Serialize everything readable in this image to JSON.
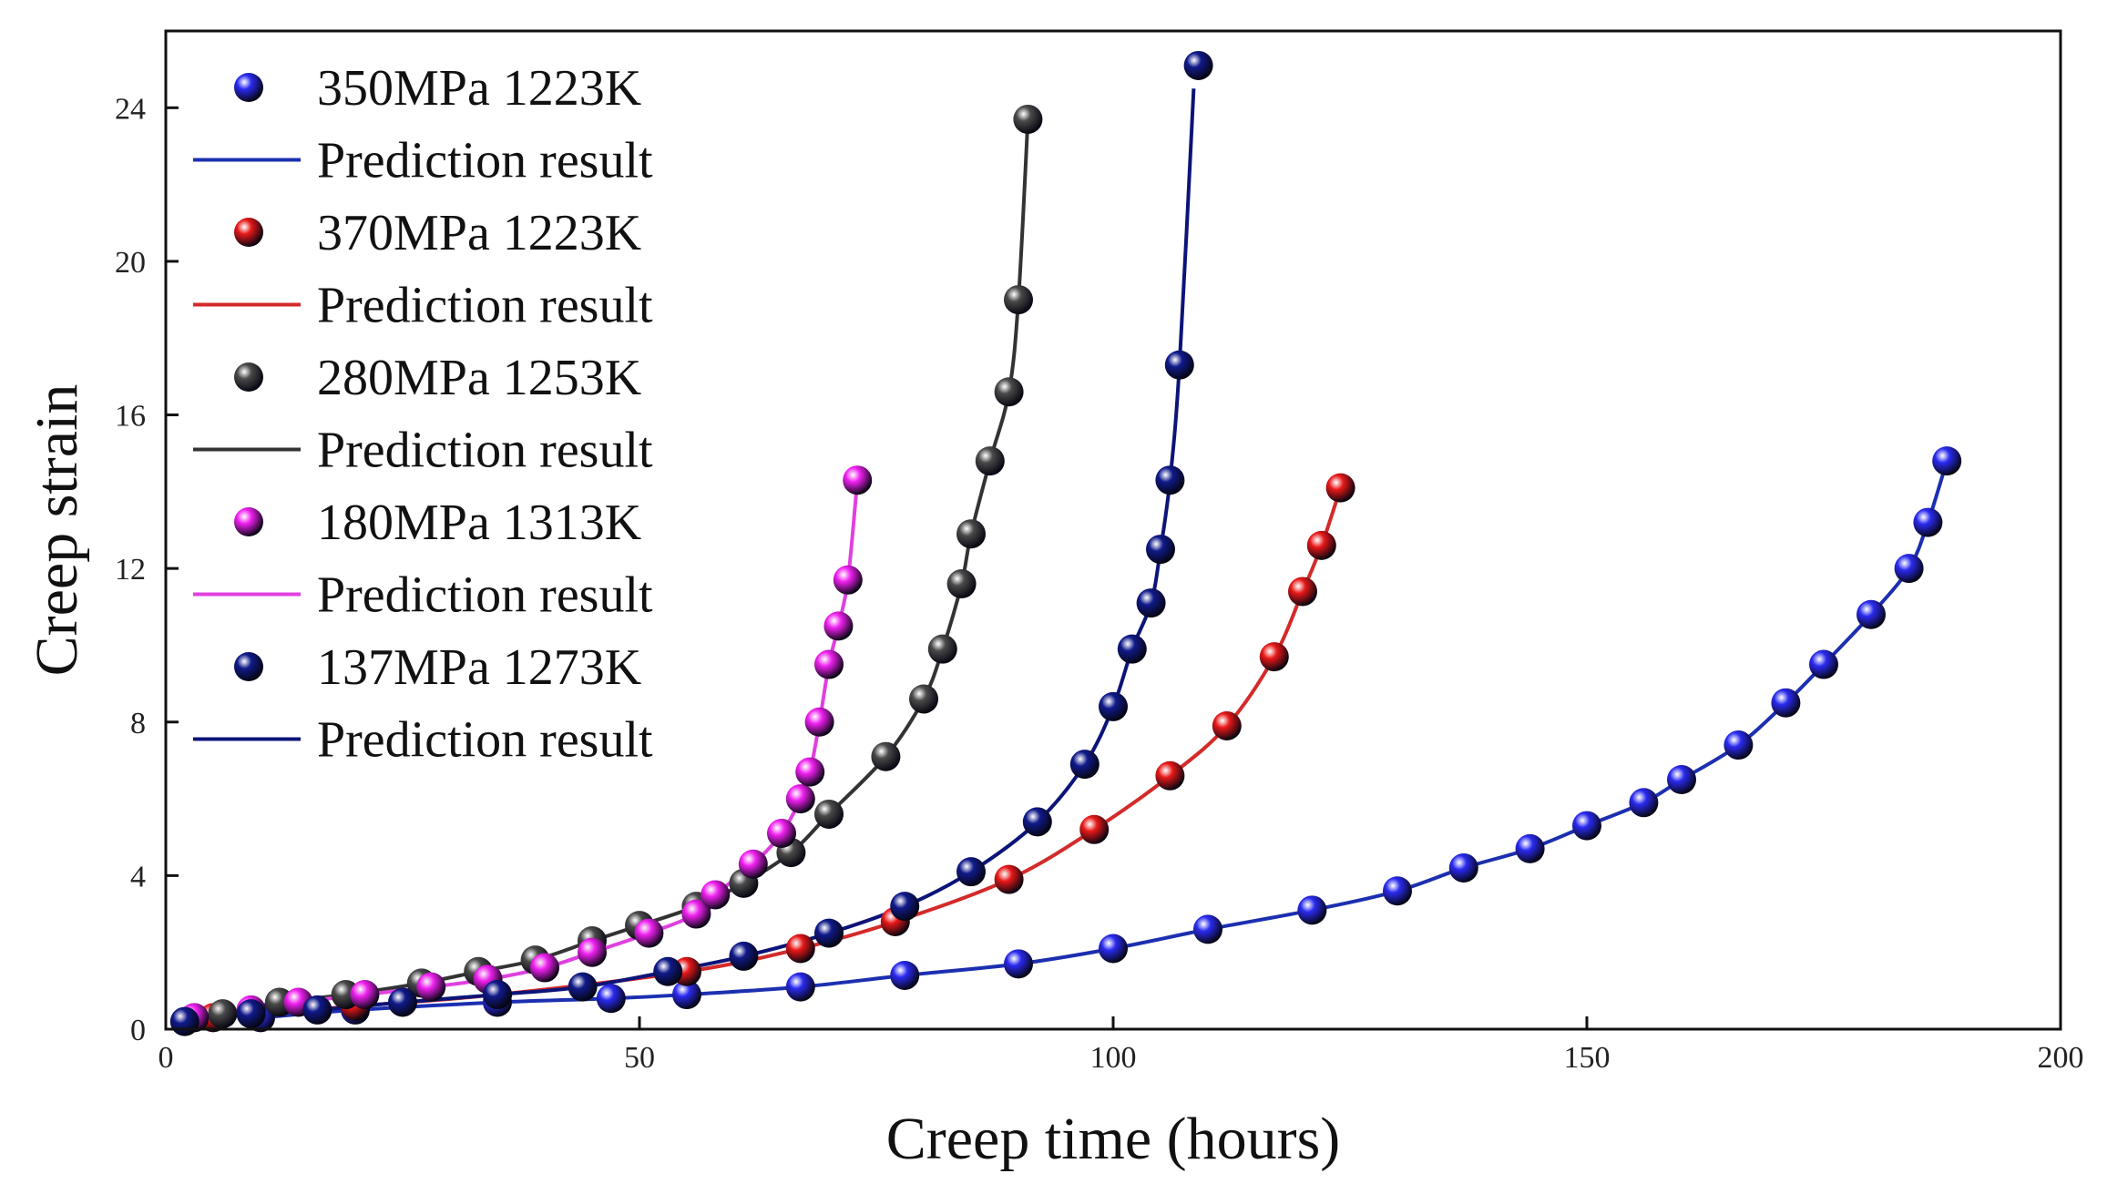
{
  "chart_data": {
    "type": "scatter",
    "title": "",
    "xlabel": "Creep time (hours)",
    "ylabel": "Creep strain",
    "xlim": [
      0,
      200
    ],
    "ylim": [
      0,
      26
    ],
    "xticks": [
      0,
      50,
      100,
      150,
      200
    ],
    "yticks": [
      0,
      4,
      8,
      12,
      16,
      20,
      24
    ],
    "grid": false,
    "legend_position": "top-left",
    "series": [
      {
        "name": "350MPa 1223K",
        "fit_name": "Prediction result",
        "marker_color": "#2a2af0",
        "line_color": "#1c2fb0",
        "points": [
          [
            10,
            0.3
          ],
          [
            20,
            0.5
          ],
          [
            35,
            0.7
          ],
          [
            47,
            0.8
          ],
          [
            55,
            0.9
          ],
          [
            67,
            1.1
          ],
          [
            78,
            1.4
          ],
          [
            90,
            1.7
          ],
          [
            100,
            2.1
          ],
          [
            110,
            2.6
          ],
          [
            121,
            3.1
          ],
          [
            130,
            3.6
          ],
          [
            137,
            4.2
          ],
          [
            144,
            4.7
          ],
          [
            150,
            5.3
          ],
          [
            156,
            5.9
          ],
          [
            160,
            6.5
          ],
          [
            166,
            7.4
          ],
          [
            171,
            8.5
          ],
          [
            175,
            9.5
          ],
          [
            180,
            10.8
          ],
          [
            184,
            12.0
          ],
          [
            186,
            13.2
          ],
          [
            188,
            14.8
          ]
        ]
      },
      {
        "name": "370MPa 1223K",
        "fit_name": "Prediction result",
        "marker_color": "#e81818",
        "line_color": "#d42a2a",
        "points": [
          [
            5,
            0.3
          ],
          [
            20,
            0.6
          ],
          [
            35,
            0.9
          ],
          [
            55,
            1.5
          ],
          [
            67,
            2.1
          ],
          [
            77,
            2.8
          ],
          [
            89,
            3.9
          ],
          [
            98,
            5.2
          ],
          [
            106,
            6.6
          ],
          [
            112,
            7.9
          ],
          [
            117,
            9.7
          ],
          [
            120,
            11.4
          ],
          [
            122,
            12.6
          ],
          [
            124,
            14.1
          ]
        ]
      },
      {
        "name": "280MPa 1253K",
        "fit_name": "Prediction result",
        "marker_color": "#4a4a4a",
        "line_color": "#333333",
        "points": [
          [
            3,
            0.3
          ],
          [
            6,
            0.4
          ],
          [
            12,
            0.7
          ],
          [
            19,
            0.9
          ],
          [
            27,
            1.2
          ],
          [
            33,
            1.5
          ],
          [
            39,
            1.8
          ],
          [
            45,
            2.3
          ],
          [
            50,
            2.7
          ],
          [
            56,
            3.2
          ],
          [
            61,
            3.8
          ],
          [
            66,
            4.6
          ],
          [
            70,
            5.6
          ],
          [
            76,
            7.1
          ],
          [
            80,
            8.6
          ],
          [
            82,
            9.9
          ],
          [
            84,
            11.6
          ],
          [
            85,
            12.9
          ],
          [
            87,
            14.8
          ],
          [
            89,
            16.6
          ],
          [
            90,
            19.0
          ],
          [
            91,
            23.7
          ]
        ]
      },
      {
        "name": "180MPa 1313K",
        "fit_name": "Prediction result",
        "marker_color": "#f020f0",
        "line_color": "#e040e0",
        "points": [
          [
            3,
            0.3
          ],
          [
            9,
            0.5
          ],
          [
            14,
            0.7
          ],
          [
            21,
            0.9
          ],
          [
            28,
            1.1
          ],
          [
            34,
            1.3
          ],
          [
            40,
            1.6
          ],
          [
            45,
            2.0
          ],
          [
            51,
            2.5
          ],
          [
            56,
            3.0
          ],
          [
            58,
            3.5
          ],
          [
            62,
            4.3
          ],
          [
            65,
            5.1
          ],
          [
            67,
            6.0
          ],
          [
            68,
            6.7
          ],
          [
            69,
            8.0
          ],
          [
            70,
            9.5
          ],
          [
            71,
            10.5
          ],
          [
            72,
            11.7
          ],
          [
            73,
            14.3
          ]
        ]
      },
      {
        "name": "137MPa 1273K",
        "fit_name": "Prediction result",
        "marker_color": "#101a8a",
        "line_color": "#0c1478",
        "points": [
          [
            2,
            0.2
          ],
          [
            9,
            0.4
          ],
          [
            16,
            0.5
          ],
          [
            25,
            0.7
          ],
          [
            35,
            0.9
          ],
          [
            44,
            1.1
          ],
          [
            53,
            1.5
          ],
          [
            61,
            1.9
          ],
          [
            70,
            2.5
          ],
          [
            78,
            3.2
          ],
          [
            85,
            4.1
          ],
          [
            92,
            5.4
          ],
          [
            97,
            6.9
          ],
          [
            100,
            8.4
          ],
          [
            102,
            9.9
          ],
          [
            104,
            11.1
          ],
          [
            105,
            12.5
          ],
          [
            106,
            14.3
          ],
          [
            107,
            17.3
          ],
          [
            109,
            25.1
          ]
        ]
      }
    ]
  }
}
